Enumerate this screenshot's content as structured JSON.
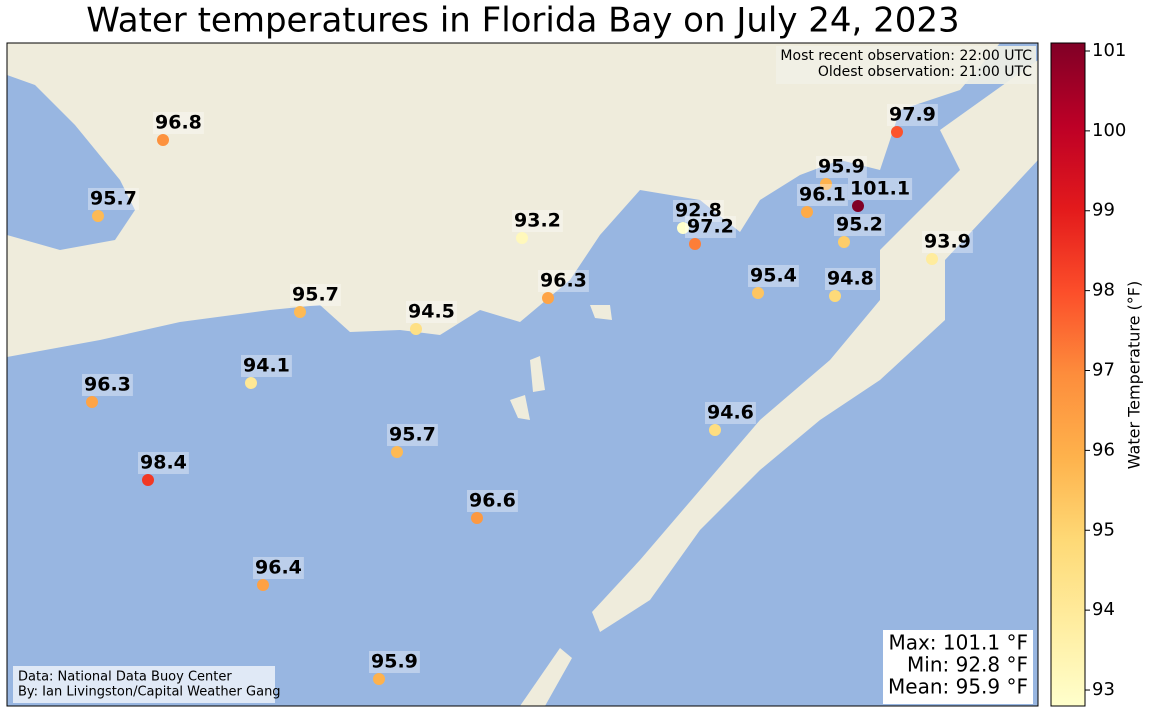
{
  "title": "Water temperatures in Florida Bay on July 24, 2023",
  "observations": [
    "Most recent observation: 22:00 UTC",
    "Oldest observation: 21:00 UTC"
  ],
  "credits": [
    "Data: National Data Buoy Center",
    "By: Ian Livingston/Capital Weather Gang"
  ],
  "stats": [
    "Max: 101.1 °F",
    "Min: 92.8 °F",
    "Mean: 95.9 °F"
  ],
  "colorbar": {
    "label": "Water Temperature (°F)",
    "lim": [
      92.8,
      101.1
    ],
    "ticks": [
      93,
      94,
      95,
      96,
      97,
      98,
      99,
      100,
      101
    ],
    "colors": [
      "#ffffcc",
      "#ffeda0",
      "#fed976",
      "#feb24c",
      "#fd8d3c",
      "#fc4e2a",
      "#e31a1c",
      "#bd0026",
      "#800026"
    ]
  },
  "stations": [
    96.8,
    95.7,
    93.2,
    92.8,
    97.2,
    95.9,
    96.1,
    101.1,
    95.2,
    97.9,
    93.9,
    95.7,
    94.5,
    96.3,
    95.4,
    94.8,
    94.1,
    96.3,
    94.6,
    95.7,
    98.4,
    96.6,
    96.4,
    95.9
  ]
}
